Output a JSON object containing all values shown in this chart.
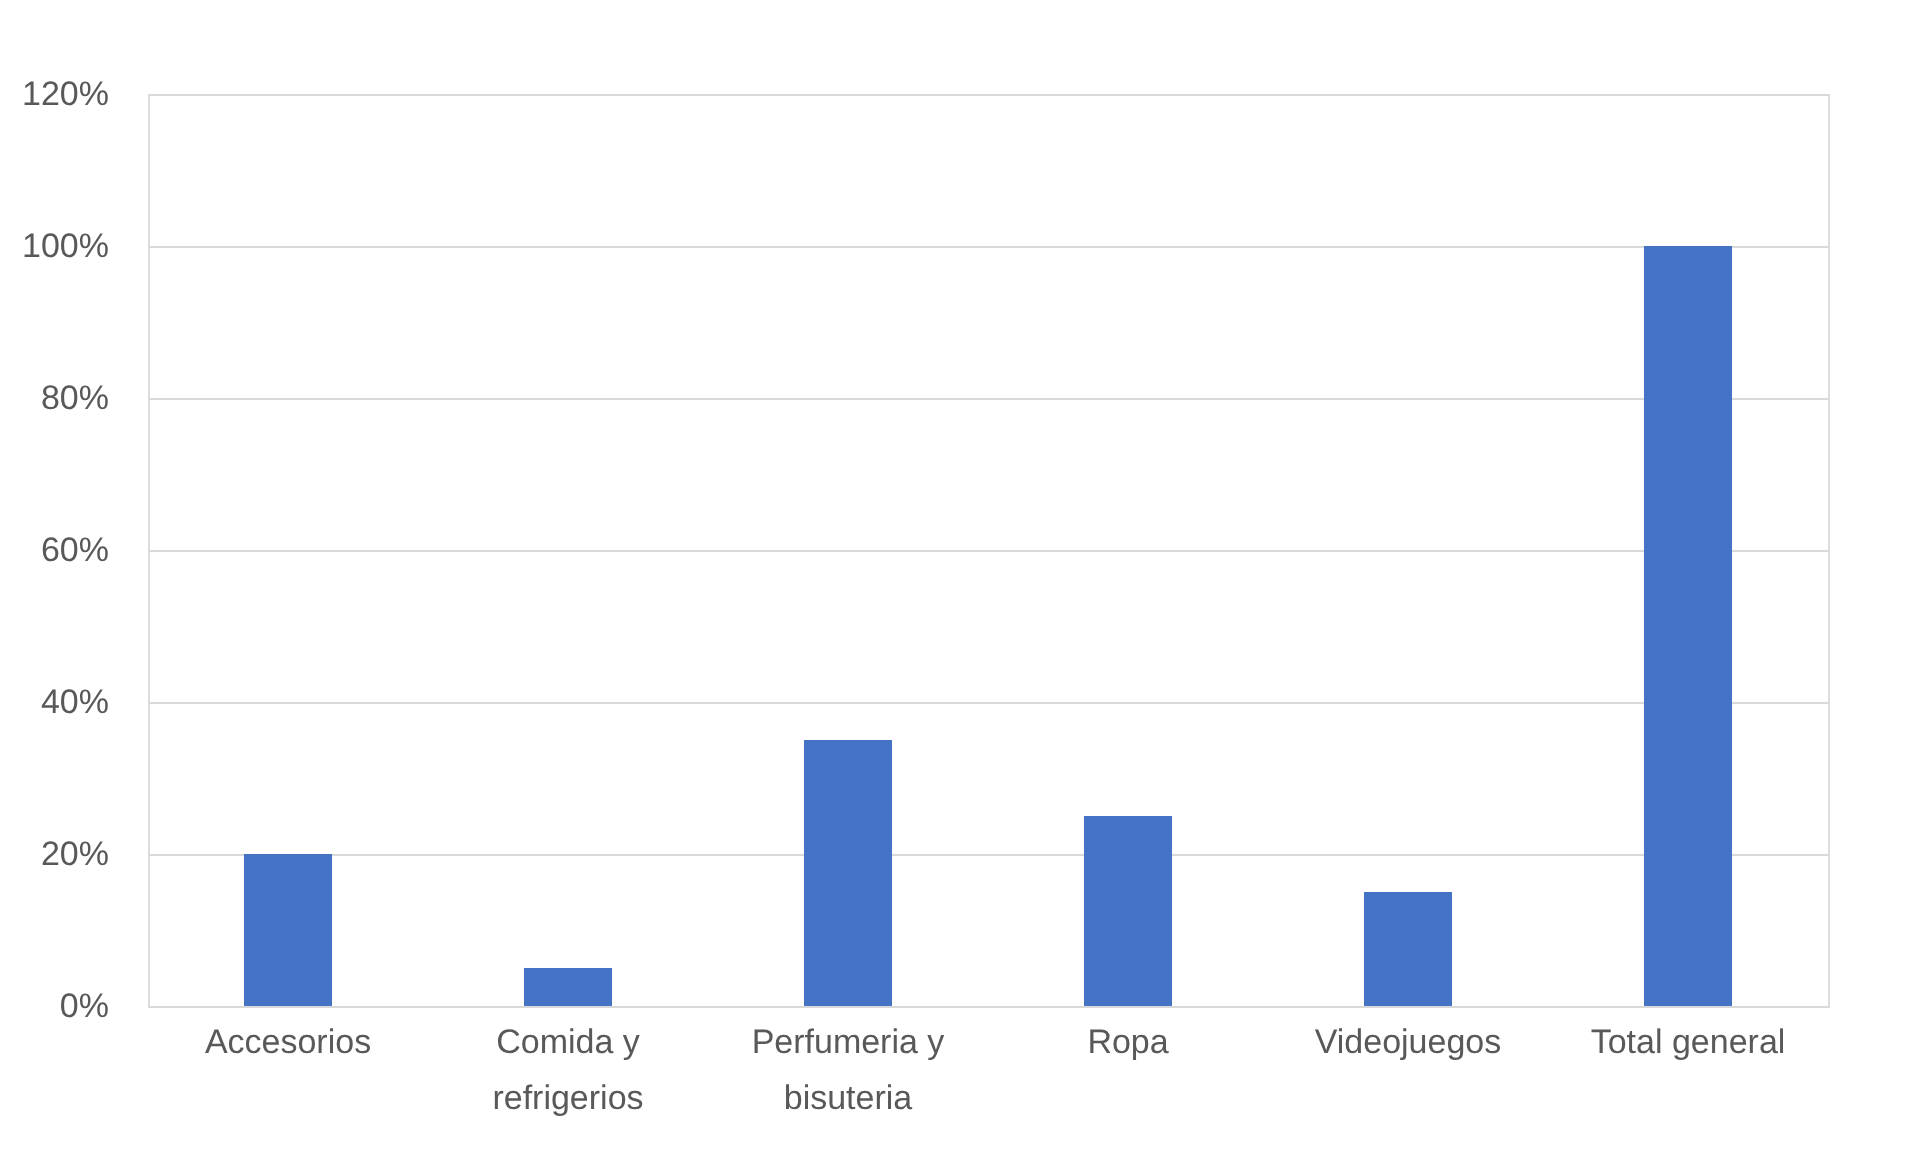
{
  "chart_data": {
    "type": "bar",
    "categories": [
      "Accesorios",
      "Comida y refrigerios",
      "Perfumeria y bisuteria",
      "Ropa",
      "Videojuegos",
      "Total general"
    ],
    "values": [
      20,
      5,
      35,
      25,
      15,
      100
    ],
    "color": "#4472c4",
    "ylim": [
      0,
      120
    ],
    "yticks": [
      {
        "value": 0,
        "label": "0%"
      },
      {
        "value": 20,
        "label": "20%"
      },
      {
        "value": 40,
        "label": "40%"
      },
      {
        "value": 60,
        "label": "60%"
      },
      {
        "value": 80,
        "label": "80%"
      },
      {
        "value": 100,
        "label": "100%"
      },
      {
        "value": 120,
        "label": "120%"
      }
    ],
    "grid": "y"
  }
}
